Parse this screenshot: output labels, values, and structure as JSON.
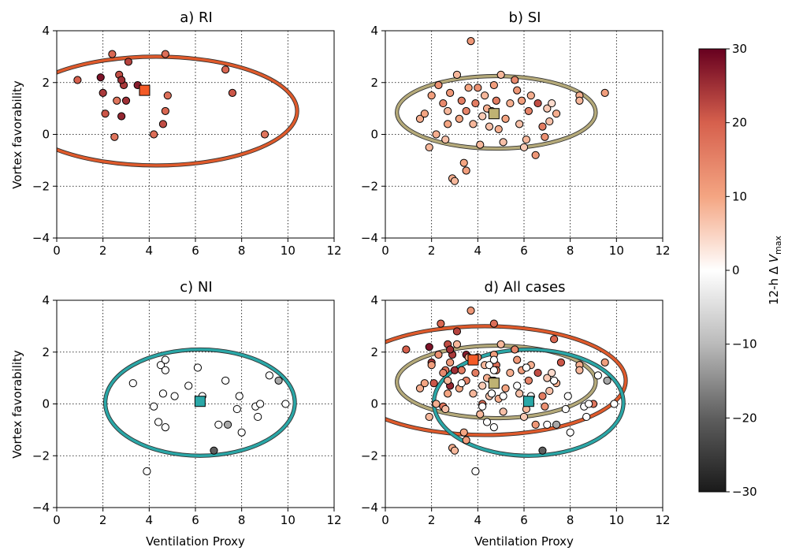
{
  "chart_data": {
    "type": "scatter",
    "xlabel": "Ventilation Proxy",
    "ylabel": "Vortex favorability",
    "xlim": [
      0,
      12
    ],
    "ylim": [
      -4,
      4
    ],
    "xticks": [
      "0",
      "2",
      "4",
      "6",
      "8",
      "10",
      "12"
    ],
    "yticks": [
      "4",
      "2",
      "0",
      "−2",
      "−4"
    ],
    "grid": true,
    "colorbar": {
      "label_pre": "12-h Δ ",
      "label_var": "V",
      "label_sub": "max",
      "range": [
        -30,
        30
      ],
      "ticks": [
        "30",
        "20",
        "10",
        "0",
        "−10",
        "−20",
        "−30"
      ],
      "colormap": "RdGy_r"
    },
    "panels": [
      {
        "key": "RI",
        "title": "a) RI",
        "centroid": {
          "x": 3.8,
          "y": 1.7,
          "color": "#f35a26"
        },
        "ellipse": {
          "cx": 4.3,
          "cy": 0.9,
          "rx": 6.1,
          "ry": 2.1,
          "color": "#e05a2b"
        },
        "points": [
          {
            "x": 0.9,
            "y": 2.1,
            "v": 20
          },
          {
            "x": 1.9,
            "y": 2.2,
            "v": 28
          },
          {
            "x": 2.0,
            "y": 1.6,
            "v": 24
          },
          {
            "x": 2.1,
            "y": 0.8,
            "v": 21
          },
          {
            "x": 2.4,
            "y": 3.1,
            "v": 19
          },
          {
            "x": 2.6,
            "y": 1.3,
            "v": 17
          },
          {
            "x": 2.7,
            "y": 2.3,
            "v": 22
          },
          {
            "x": 2.8,
            "y": 0.7,
            "v": 26
          },
          {
            "x": 2.9,
            "y": 1.9,
            "v": 24
          },
          {
            "x": 3.0,
            "y": 1.3,
            "v": 25
          },
          {
            "x": 3.1,
            "y": 2.8,
            "v": 23
          },
          {
            "x": 2.5,
            "y": -0.1,
            "v": 17
          },
          {
            "x": 3.5,
            "y": 1.9,
            "v": 27
          },
          {
            "x": 4.2,
            "y": 0.0,
            "v": 18
          },
          {
            "x": 4.6,
            "y": 0.4,
            "v": 22
          },
          {
            "x": 4.7,
            "y": 3.1,
            "v": 18
          },
          {
            "x": 4.8,
            "y": 1.5,
            "v": 18
          },
          {
            "x": 4.7,
            "y": 0.9,
            "v": 19
          },
          {
            "x": 7.3,
            "y": 2.5,
            "v": 19
          },
          {
            "x": 7.6,
            "y": 1.6,
            "v": 21
          },
          {
            "x": 9.0,
            "y": 0.0,
            "v": 17
          },
          {
            "x": 2.8,
            "y": 2.1,
            "v": 25
          }
        ]
      },
      {
        "key": "SI",
        "title": "b) SI",
        "centroid": {
          "x": 4.7,
          "y": 0.8,
          "color": "#bfb273"
        },
        "ellipse": {
          "cx": 4.8,
          "cy": 0.85,
          "rx": 4.3,
          "ry": 1.4,
          "color": "#b5aa7a"
        },
        "points": [
          {
            "x": 1.5,
            "y": 0.6,
            "v": 9
          },
          {
            "x": 1.7,
            "y": 0.8,
            "v": 10
          },
          {
            "x": 1.9,
            "y": -0.5,
            "v": 8
          },
          {
            "x": 2.0,
            "y": 1.5,
            "v": 11
          },
          {
            "x": 2.2,
            "y": 0.0,
            "v": 9
          },
          {
            "x": 2.5,
            "y": 1.2,
            "v": 14
          },
          {
            "x": 2.6,
            "y": -0.2,
            "v": 7
          },
          {
            "x": 2.7,
            "y": 0.9,
            "v": 8
          },
          {
            "x": 2.8,
            "y": 1.6,
            "v": 12
          },
          {
            "x": 2.9,
            "y": -1.7,
            "v": 9
          },
          {
            "x": 3.0,
            "y": -1.8,
            "v": 8
          },
          {
            "x": 3.1,
            "y": 2.3,
            "v": 8
          },
          {
            "x": 3.2,
            "y": 0.6,
            "v": 10
          },
          {
            "x": 3.3,
            "y": 1.3,
            "v": 16
          },
          {
            "x": 3.4,
            "y": -1.1,
            "v": 10
          },
          {
            "x": 3.5,
            "y": 0.9,
            "v": 15
          },
          {
            "x": 3.6,
            "y": 1.8,
            "v": 10
          },
          {
            "x": 3.7,
            "y": 3.6,
            "v": 12
          },
          {
            "x": 3.8,
            "y": 0.4,
            "v": 8
          },
          {
            "x": 3.9,
            "y": 1.2,
            "v": 16
          },
          {
            "x": 4.0,
            "y": 1.8,
            "v": 13
          },
          {
            "x": 4.1,
            "y": -0.4,
            "v": 8
          },
          {
            "x": 4.2,
            "y": 0.7,
            "v": 6
          },
          {
            "x": 4.3,
            "y": 1.5,
            "v": 8
          },
          {
            "x": 4.5,
            "y": 0.3,
            "v": 7
          },
          {
            "x": 4.6,
            "y": 0.9,
            "v": 10
          },
          {
            "x": 4.7,
            "y": 1.9,
            "v": 11
          },
          {
            "x": 4.8,
            "y": 1.3,
            "v": 16
          },
          {
            "x": 5.0,
            "y": 2.3,
            "v": 8
          },
          {
            "x": 5.2,
            "y": 0.6,
            "v": 10
          },
          {
            "x": 5.4,
            "y": 1.2,
            "v": 9
          },
          {
            "x": 5.6,
            "y": 2.1,
            "v": 14
          },
          {
            "x": 5.8,
            "y": 0.4,
            "v": 7
          },
          {
            "x": 5.9,
            "y": 1.3,
            "v": 11
          },
          {
            "x": 6.0,
            "y": -0.5,
            "v": 6
          },
          {
            "x": 6.2,
            "y": 0.9,
            "v": 15
          },
          {
            "x": 6.3,
            "y": 1.5,
            "v": 9
          },
          {
            "x": 6.5,
            "y": -0.8,
            "v": 12
          },
          {
            "x": 6.6,
            "y": 1.2,
            "v": 22
          },
          {
            "x": 6.8,
            "y": 0.3,
            "v": 16
          },
          {
            "x": 7.0,
            "y": 1.0,
            "v": 6
          },
          {
            "x": 7.2,
            "y": 1.2,
            "v": 4
          },
          {
            "x": 7.4,
            "y": 0.8,
            "v": 9
          },
          {
            "x": 8.4,
            "y": 1.5,
            "v": 9
          },
          {
            "x": 8.4,
            "y": 1.3,
            "v": 8
          },
          {
            "x": 9.5,
            "y": 1.6,
            "v": 11
          },
          {
            "x": 2.3,
            "y": 1.9,
            "v": 13
          },
          {
            "x": 5.1,
            "y": -0.3,
            "v": 7
          },
          {
            "x": 3.5,
            "y": -1.4,
            "v": 11
          },
          {
            "x": 4.4,
            "y": 1.0,
            "v": 9
          },
          {
            "x": 5.7,
            "y": 1.7,
            "v": 12
          },
          {
            "x": 6.1,
            "y": -0.2,
            "v": 8
          },
          {
            "x": 6.9,
            "y": -0.1,
            "v": 13
          },
          {
            "x": 2.7,
            "y": 0.4,
            "v": 10
          },
          {
            "x": 7.1,
            "y": 0.5,
            "v": 7
          },
          {
            "x": 4.9,
            "y": 0.2,
            "v": 9
          }
        ]
      },
      {
        "key": "NI",
        "title": "c) NI",
        "centroid": {
          "x": 6.2,
          "y": 0.1,
          "color": "#2aa7a7"
        },
        "ellipse": {
          "cx": 6.2,
          "cy": 0.05,
          "rx": 4.1,
          "ry": 2.05,
          "color": "#2aa7a7"
        },
        "points": [
          {
            "x": 3.3,
            "y": 0.8,
            "v": 0
          },
          {
            "x": 3.9,
            "y": -2.6,
            "v": 0
          },
          {
            "x": 4.2,
            "y": -0.1,
            "v": 0
          },
          {
            "x": 4.4,
            "y": -0.7,
            "v": 0
          },
          {
            "x": 4.5,
            "y": 1.5,
            "v": 0
          },
          {
            "x": 4.6,
            "y": 0.4,
            "v": 0
          },
          {
            "x": 4.7,
            "y": 1.3,
            "v": 0
          },
          {
            "x": 4.7,
            "y": -0.9,
            "v": 0
          },
          {
            "x": 4.7,
            "y": 1.7,
            "v": 0
          },
          {
            "x": 5.1,
            "y": 0.3,
            "v": 0
          },
          {
            "x": 5.7,
            "y": 0.7,
            "v": 0
          },
          {
            "x": 6.1,
            "y": 1.4,
            "v": 0
          },
          {
            "x": 6.3,
            "y": 0.3,
            "v": 0
          },
          {
            "x": 7.0,
            "y": -0.8,
            "v": 0
          },
          {
            "x": 7.3,
            "y": 0.9,
            "v": 0
          },
          {
            "x": 7.4,
            "y": -0.8,
            "v": -12
          },
          {
            "x": 7.8,
            "y": -0.2,
            "v": 0
          },
          {
            "x": 7.9,
            "y": 0.3,
            "v": 0
          },
          {
            "x": 8.0,
            "y": -1.1,
            "v": 0
          },
          {
            "x": 8.6,
            "y": -0.1,
            "v": 0
          },
          {
            "x": 8.7,
            "y": -0.5,
            "v": 0
          },
          {
            "x": 8.8,
            "y": 0.0,
            "v": 0
          },
          {
            "x": 9.2,
            "y": 1.1,
            "v": 0
          },
          {
            "x": 9.6,
            "y": 0.9,
            "v": -12
          },
          {
            "x": 9.9,
            "y": 0.0,
            "v": 0
          },
          {
            "x": 6.8,
            "y": -1.8,
            "v": -20
          }
        ]
      }
    ],
    "combined_title": "d) All cases"
  }
}
